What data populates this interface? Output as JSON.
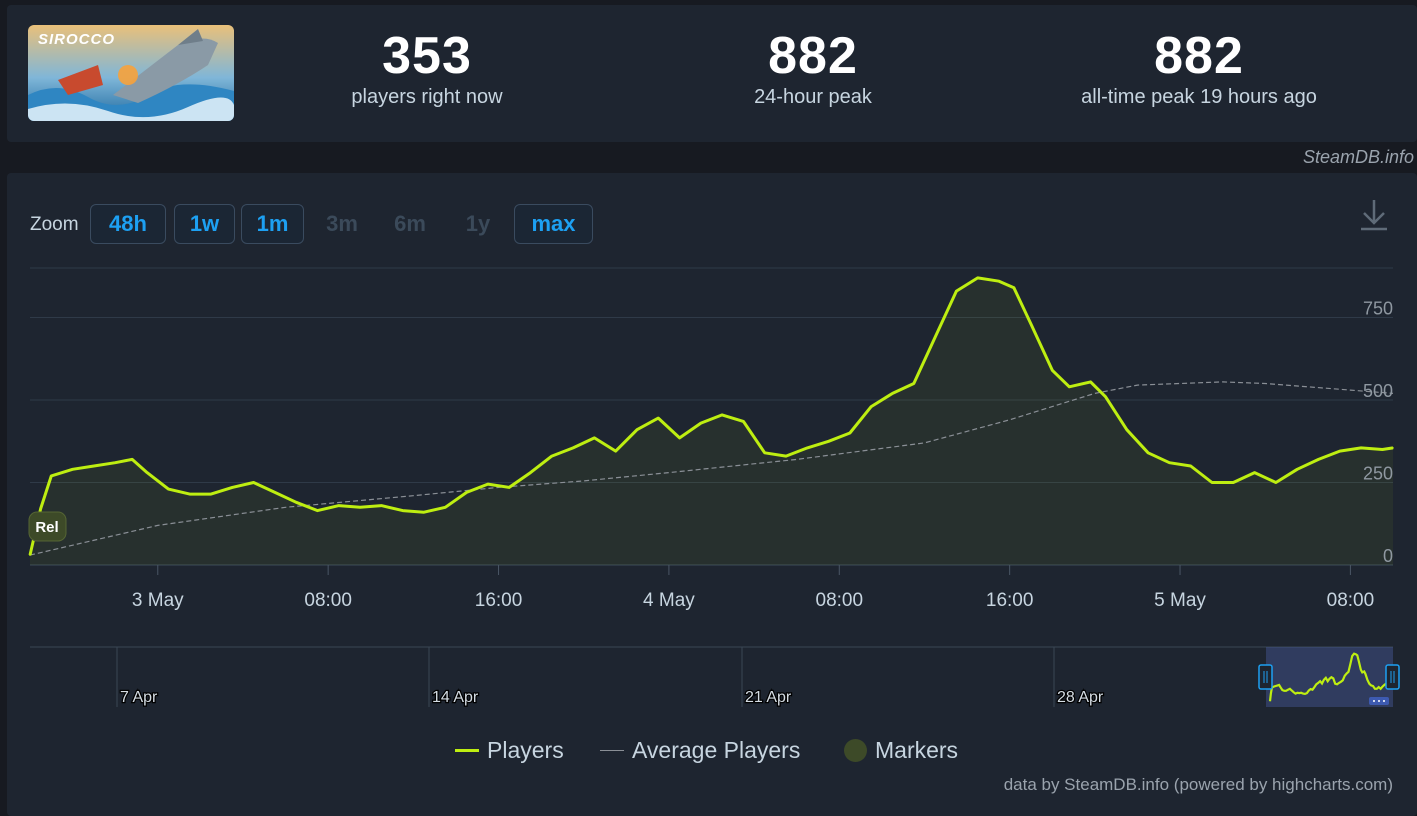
{
  "game": {
    "title": "SIROCCO",
    "thumbnail": "sirocco-banner-art"
  },
  "stats": [
    {
      "value": "353",
      "label": "players right now"
    },
    {
      "value": "882",
      "label": "24-hour peak"
    },
    {
      "value": "882",
      "label": "all-time peak 19 hours ago"
    }
  ],
  "credit_top": "SteamDB.info",
  "zoom": {
    "label": "Zoom",
    "buttons": [
      {
        "label": "48h",
        "enabled": true
      },
      {
        "label": "1w",
        "enabled": true
      },
      {
        "label": "1m",
        "enabled": true
      },
      {
        "label": "3m",
        "enabled": false
      },
      {
        "label": "6m",
        "enabled": false
      },
      {
        "label": "1y",
        "enabled": false
      },
      {
        "label": "max",
        "enabled": true
      }
    ]
  },
  "download_icon": "download-icon",
  "marker_label": "Rel",
  "legend": {
    "players": "Players",
    "average": "Average Players",
    "markers": "Markers"
  },
  "credit_bottom": "data by SteamDB.info (powered by highcharts.com)",
  "colors": {
    "players": "#beee11",
    "average": "#8a8f96",
    "marker": "#3d4a28",
    "accent": "#1da0f2",
    "grid": "#2f3a48"
  },
  "chart_data": {
    "type": "line",
    "x_unit": "hours since 2 May 00:00",
    "x_range": [
      0,
      82
    ],
    "ylim": [
      0,
      900
    ],
    "y_ticks": [
      0,
      250,
      500,
      750
    ],
    "x_ticks": [
      {
        "x": 24,
        "label": "3 May"
      },
      {
        "x": 32,
        "label": "08:00"
      },
      {
        "x": 40,
        "label": "16:00"
      },
      {
        "x": 48,
        "label": "4 May"
      },
      {
        "x": 56,
        "label": "08:00"
      },
      {
        "x": 64,
        "label": "16:00"
      },
      {
        "x": 72,
        "label": "5 May"
      },
      {
        "x": 80,
        "label": "08:00"
      }
    ],
    "series": [
      {
        "name": "Players",
        "x": [
          18,
          18.5,
          19,
          20,
          21,
          22,
          22.8,
          23.5,
          24.5,
          25.5,
          26.5,
          27.5,
          28.5,
          29.5,
          30.5,
          31.5,
          32.5,
          33.5,
          34.5,
          35.5,
          36.5,
          37.5,
          38.5,
          39.5,
          40.5,
          41.5,
          42.5,
          43.5,
          44.5,
          45.5,
          46.5,
          47.5,
          48.5,
          49.5,
          50.5,
          51.5,
          52.5,
          53.5,
          54.5,
          55.5,
          56.5,
          57.5,
          58.5,
          59.5,
          60.5,
          61.5,
          62.5,
          63.5,
          64.2,
          65,
          66,
          66.8,
          67.8,
          68.5,
          69.5,
          70.5,
          71.5,
          72.5,
          73.5,
          74.5,
          75.5,
          76.5,
          77.5,
          78.5,
          79.5,
          80.5,
          81.5,
          82
        ],
        "values": [
          30,
          170,
          270,
          290,
          300,
          310,
          320,
          280,
          230,
          215,
          215,
          235,
          250,
          220,
          190,
          165,
          180,
          175,
          180,
          165,
          160,
          175,
          220,
          245,
          235,
          280,
          330,
          355,
          385,
          345,
          410,
          445,
          385,
          430,
          455,
          435,
          340,
          330,
          355,
          375,
          400,
          480,
          520,
          550,
          690,
          830,
          870,
          860,
          840,
          730,
          590,
          540,
          555,
          510,
          410,
          340,
          310,
          300,
          250,
          250,
          280,
          250,
          290,
          320,
          345,
          355,
          350,
          355
        ]
      },
      {
        "name": "Average Players",
        "x": [
          18,
          24,
          30,
          36,
          40,
          44,
          48,
          54,
          60,
          64,
          68,
          70,
          72,
          74,
          76,
          78,
          80,
          82
        ],
        "values": [
          30,
          120,
          175,
          210,
          235,
          255,
          280,
          320,
          370,
          440,
          520,
          545,
          550,
          555,
          550,
          540,
          530,
          520
        ]
      }
    ],
    "navigator": {
      "x_labels": [
        "7 Apr",
        "14 Apr",
        "21 Apr",
        "28 Apr"
      ],
      "selected_range": "last 48 hours"
    }
  }
}
